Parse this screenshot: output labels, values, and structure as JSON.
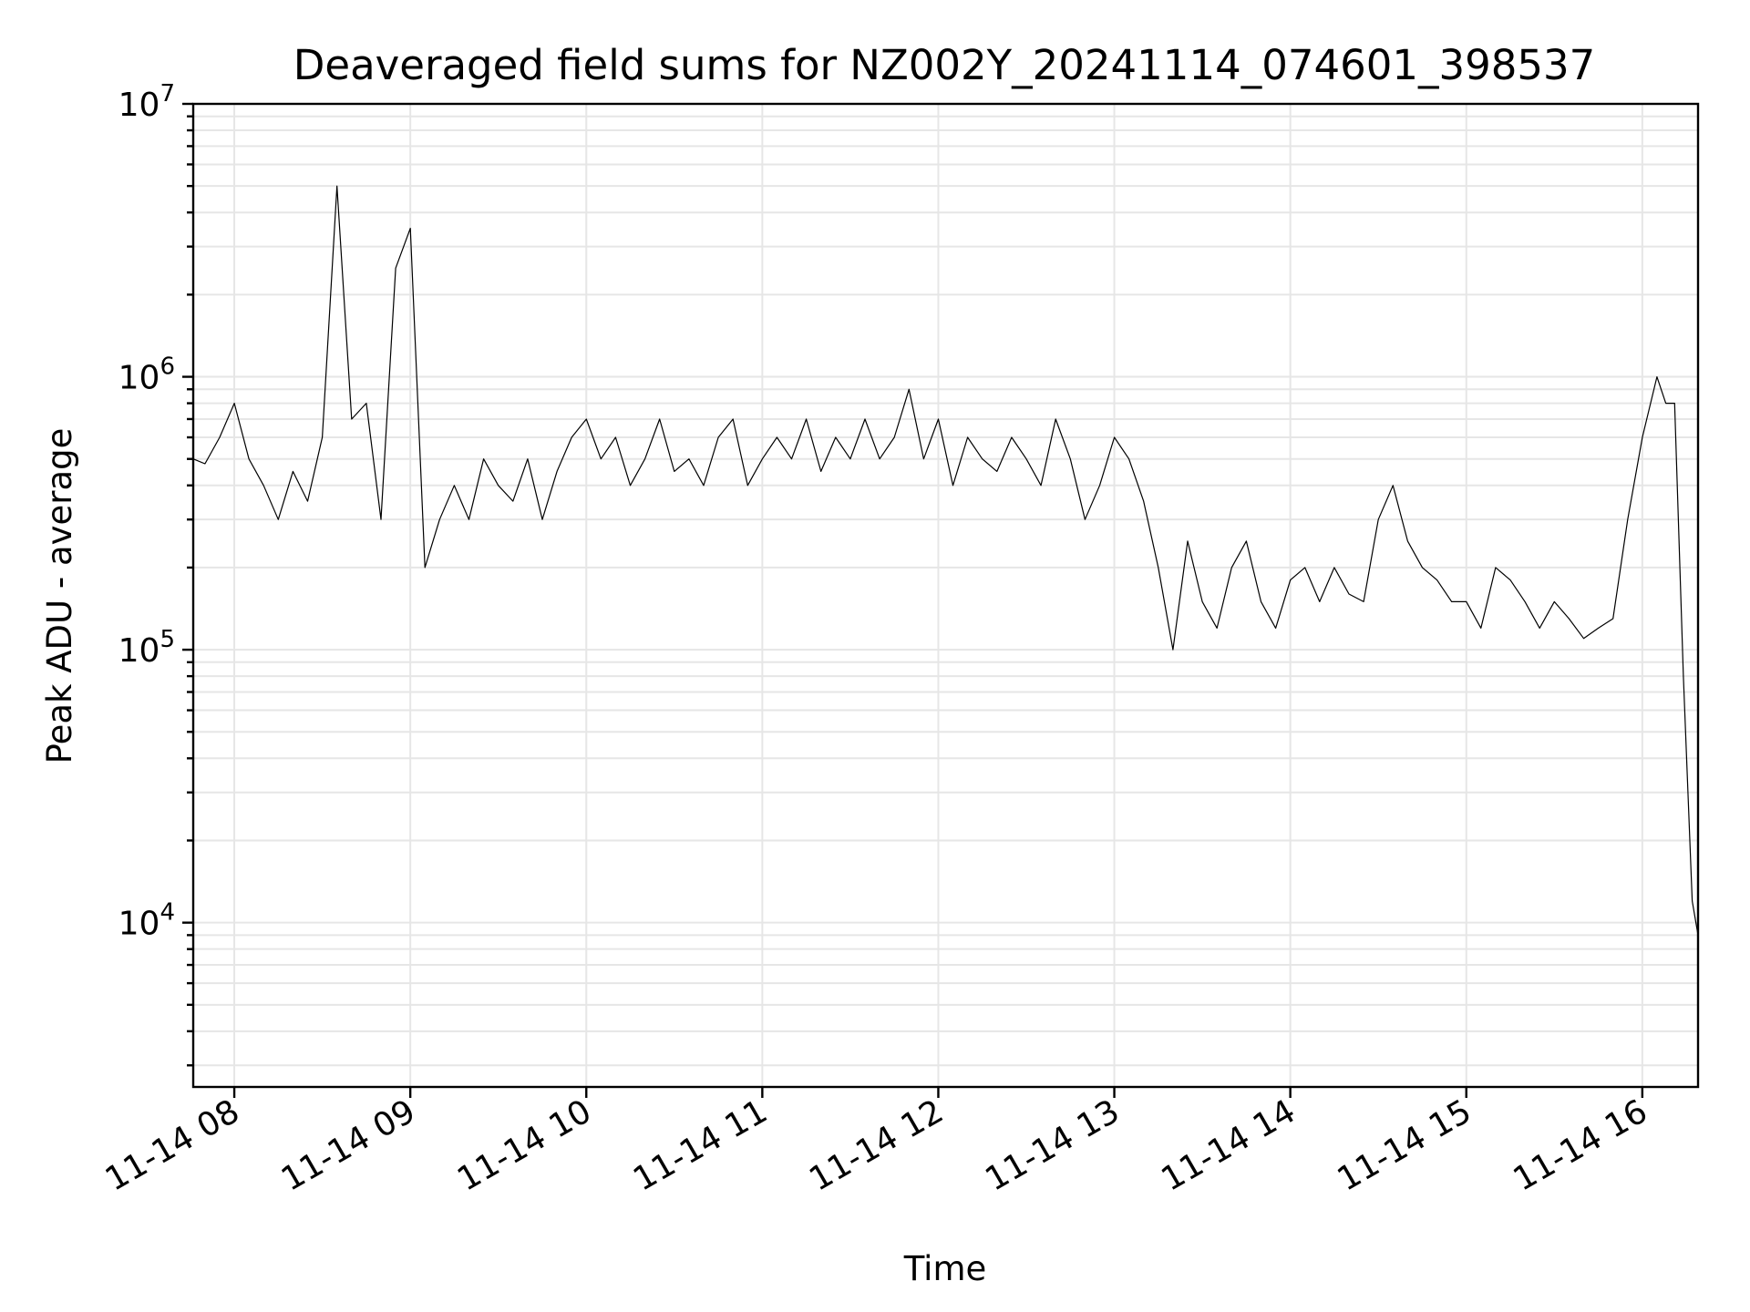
{
  "chart_data": {
    "type": "line",
    "title": "Deaveraged field sums for NZ002Y_20241114_074601_398537",
    "xlabel": "Time",
    "ylabel": "Peak ADU - average",
    "yscale": "log",
    "grid": true,
    "xlim": [
      "2024-11-14 07:46",
      "2024-11-14 16:19"
    ],
    "ylim": [
      2500,
      10000000
    ],
    "xticks": [
      {
        "value": "2024-11-14 08:00",
        "label": "11-14 08"
      },
      {
        "value": "2024-11-14 09:00",
        "label": "11-14 09"
      },
      {
        "value": "2024-11-14 10:00",
        "label": "11-14 10"
      },
      {
        "value": "2024-11-14 11:00",
        "label": "11-14 11"
      },
      {
        "value": "2024-11-14 12:00",
        "label": "11-14 12"
      },
      {
        "value": "2024-11-14 13:00",
        "label": "11-14 13"
      },
      {
        "value": "2024-11-14 14:00",
        "label": "11-14 14"
      },
      {
        "value": "2024-11-14 15:00",
        "label": "11-14 15"
      },
      {
        "value": "2024-11-14 16:00",
        "label": "11-14 16"
      }
    ],
    "yticks": [
      {
        "value": 10000,
        "base": "10",
        "exp": "4"
      },
      {
        "value": 100000,
        "base": "10",
        "exp": "5"
      },
      {
        "value": 1000000,
        "base": "10",
        "exp": "6"
      },
      {
        "value": 10000000,
        "base": "10",
        "exp": "7"
      }
    ],
    "series": [
      {
        "color": "#000000",
        "x": [
          "2024-11-14 07:46",
          "2024-11-14 07:50",
          "2024-11-14 07:55",
          "2024-11-14 08:00",
          "2024-11-14 08:05",
          "2024-11-14 08:10",
          "2024-11-14 08:15",
          "2024-11-14 08:20",
          "2024-11-14 08:25",
          "2024-11-14 08:30",
          "2024-11-14 08:35",
          "2024-11-14 08:40",
          "2024-11-14 08:45",
          "2024-11-14 08:50",
          "2024-11-14 08:55",
          "2024-11-14 09:00",
          "2024-11-14 09:05",
          "2024-11-14 09:10",
          "2024-11-14 09:15",
          "2024-11-14 09:20",
          "2024-11-14 09:25",
          "2024-11-14 09:30",
          "2024-11-14 09:35",
          "2024-11-14 09:40",
          "2024-11-14 09:45",
          "2024-11-14 09:50",
          "2024-11-14 09:55",
          "2024-11-14 10:00",
          "2024-11-14 10:05",
          "2024-11-14 10:10",
          "2024-11-14 10:15",
          "2024-11-14 10:20",
          "2024-11-14 10:25",
          "2024-11-14 10:30",
          "2024-11-14 10:35",
          "2024-11-14 10:40",
          "2024-11-14 10:45",
          "2024-11-14 10:50",
          "2024-11-14 10:55",
          "2024-11-14 11:00",
          "2024-11-14 11:05",
          "2024-11-14 11:10",
          "2024-11-14 11:15",
          "2024-11-14 11:20",
          "2024-11-14 11:25",
          "2024-11-14 11:30",
          "2024-11-14 11:35",
          "2024-11-14 11:40",
          "2024-11-14 11:45",
          "2024-11-14 11:50",
          "2024-11-14 11:55",
          "2024-11-14 12:00",
          "2024-11-14 12:05",
          "2024-11-14 12:10",
          "2024-11-14 12:15",
          "2024-11-14 12:20",
          "2024-11-14 12:25",
          "2024-11-14 12:30",
          "2024-11-14 12:35",
          "2024-11-14 12:40",
          "2024-11-14 12:45",
          "2024-11-14 12:50",
          "2024-11-14 12:55",
          "2024-11-14 13:00",
          "2024-11-14 13:05",
          "2024-11-14 13:10",
          "2024-11-14 13:15",
          "2024-11-14 13:20",
          "2024-11-14 13:25",
          "2024-11-14 13:30",
          "2024-11-14 13:35",
          "2024-11-14 13:40",
          "2024-11-14 13:45",
          "2024-11-14 13:50",
          "2024-11-14 13:55",
          "2024-11-14 14:00",
          "2024-11-14 14:05",
          "2024-11-14 14:10",
          "2024-11-14 14:15",
          "2024-11-14 14:20",
          "2024-11-14 14:25",
          "2024-11-14 14:30",
          "2024-11-14 14:35",
          "2024-11-14 14:40",
          "2024-11-14 14:45",
          "2024-11-14 14:50",
          "2024-11-14 14:55",
          "2024-11-14 15:00",
          "2024-11-14 15:05",
          "2024-11-14 15:10",
          "2024-11-14 15:15",
          "2024-11-14 15:20",
          "2024-11-14 15:25",
          "2024-11-14 15:30",
          "2024-11-14 15:35",
          "2024-11-14 15:40",
          "2024-11-14 15:45",
          "2024-11-14 15:50",
          "2024-11-14 15:55",
          "2024-11-14 16:00",
          "2024-11-14 16:05",
          "2024-11-14 16:08",
          "2024-11-14 16:11",
          "2024-11-14 16:14",
          "2024-11-14 16:17",
          "2024-11-14 16:19"
        ],
        "y": [
          500000,
          480000,
          600000,
          800000,
          500000,
          400000,
          300000,
          450000,
          350000,
          600000,
          5000000,
          700000,
          800000,
          300000,
          2500000,
          3500000,
          200000,
          300000,
          400000,
          300000,
          500000,
          400000,
          350000,
          500000,
          300000,
          450000,
          600000,
          700000,
          500000,
          600000,
          400000,
          500000,
          700000,
          450000,
          500000,
          400000,
          600000,
          700000,
          400000,
          500000,
          600000,
          500000,
          700000,
          450000,
          600000,
          500000,
          700000,
          500000,
          600000,
          900000,
          500000,
          700000,
          400000,
          600000,
          500000,
          450000,
          600000,
          500000,
          400000,
          700000,
          500000,
          300000,
          400000,
          600000,
          500000,
          350000,
          200000,
          100000,
          250000,
          150000,
          120000,
          200000,
          250000,
          150000,
          120000,
          180000,
          200000,
          150000,
          200000,
          160000,
          150000,
          300000,
          400000,
          250000,
          200000,
          180000,
          150000,
          150000,
          120000,
          200000,
          180000,
          150000,
          120000,
          150000,
          130000,
          110000,
          120000,
          130000,
          300000,
          600000,
          1000000,
          800000,
          800000,
          80000,
          12000,
          9000
        ]
      }
    ]
  }
}
